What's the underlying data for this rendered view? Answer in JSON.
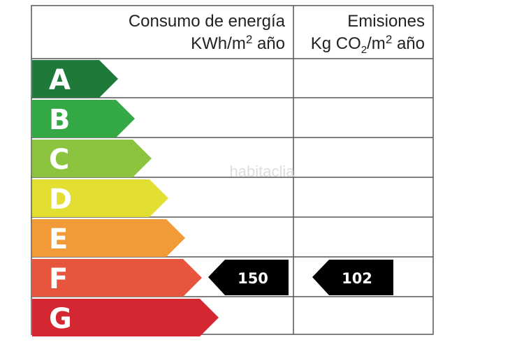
{
  "header": {
    "consumo_title": "Consumo de energía",
    "consumo_unit_base": "KWh/m",
    "consumo_unit_sup": "2",
    "consumo_unit_tail": " año",
    "emisiones_title": "Emisiones",
    "emisiones_unit_a": "Kg CO",
    "emisiones_unit_sub": "2",
    "emisiones_unit_b": "/m",
    "emisiones_unit_sup": "2",
    "emisiones_unit_tail": " año"
  },
  "classes": [
    {
      "letter": "A",
      "color": "#1f7a3a"
    },
    {
      "letter": "B",
      "color": "#33a845"
    },
    {
      "letter": "C",
      "color": "#8cc43f"
    },
    {
      "letter": "D",
      "color": "#e2df32"
    },
    {
      "letter": "E",
      "color": "#f29a37"
    },
    {
      "letter": "F",
      "color": "#e8553e"
    },
    {
      "letter": "G",
      "color": "#d42731"
    }
  ],
  "rating": {
    "class": "F",
    "consumo_value": "150",
    "emisiones_value": "102",
    "indicator_color": "#000000"
  },
  "watermark": {
    "text": "habitaclia"
  }
}
